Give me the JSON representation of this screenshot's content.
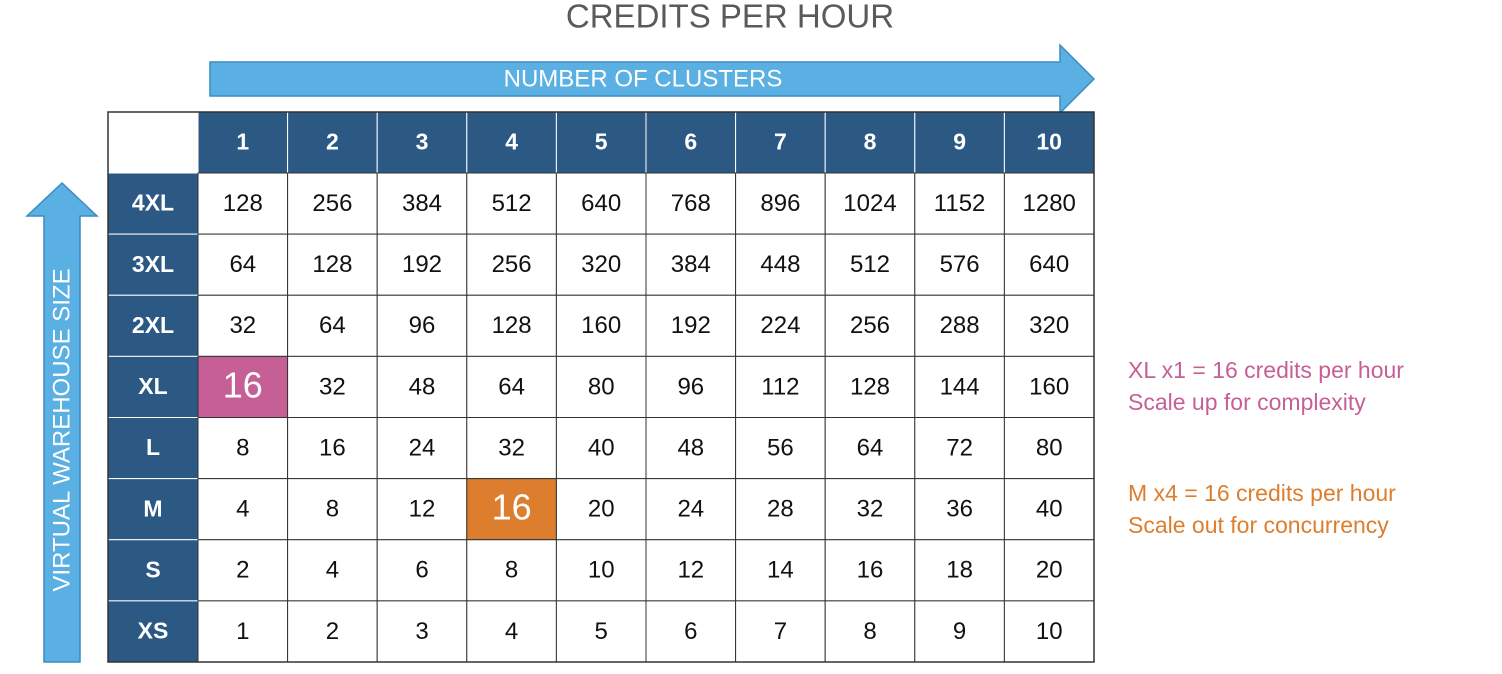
{
  "title": "CREDITS PER HOUR",
  "x_arrow_label": "NUMBER OF CLUSTERS",
  "y_arrow_label": "VIRTUAL WAREHOUSE SIZE",
  "table": {
    "columns": [
      1,
      2,
      3,
      4,
      5,
      6,
      7,
      8,
      9,
      10
    ],
    "rows": [
      {
        "label": "4XL",
        "values": [
          128,
          256,
          384,
          512,
          640,
          768,
          896,
          1024,
          1152,
          1280
        ]
      },
      {
        "label": "3XL",
        "values": [
          64,
          128,
          192,
          256,
          320,
          384,
          448,
          512,
          576,
          640
        ]
      },
      {
        "label": "2XL",
        "values": [
          32,
          64,
          96,
          128,
          160,
          192,
          224,
          256,
          288,
          320
        ]
      },
      {
        "label": "XL",
        "values": [
          16,
          32,
          48,
          64,
          80,
          96,
          112,
          128,
          144,
          160
        ]
      },
      {
        "label": "L",
        "values": [
          8,
          16,
          24,
          32,
          40,
          48,
          56,
          64,
          72,
          80
        ]
      },
      {
        "label": "M",
        "values": [
          4,
          8,
          12,
          16,
          20,
          24,
          28,
          32,
          36,
          40
        ]
      },
      {
        "label": "S",
        "values": [
          2,
          4,
          6,
          8,
          10,
          12,
          14,
          16,
          18,
          20
        ]
      },
      {
        "label": "XS",
        "values": [
          1,
          2,
          3,
          4,
          5,
          6,
          7,
          8,
          9,
          10
        ]
      }
    ],
    "highlights": [
      {
        "row": 3,
        "column": 0,
        "color": "#c75f97"
      },
      {
        "row": 5,
        "column": 3,
        "color": "#dc7e2d"
      }
    ]
  },
  "notes": [
    {
      "color": "#c75f97",
      "lines": [
        "XL x1 = 16 credits per hour",
        "Scale up for complexity"
      ]
    },
    {
      "color": "#dc7e2d",
      "lines": [
        "M x4 = 16 credits per hour",
        "Scale out for concurrency"
      ]
    }
  ]
}
